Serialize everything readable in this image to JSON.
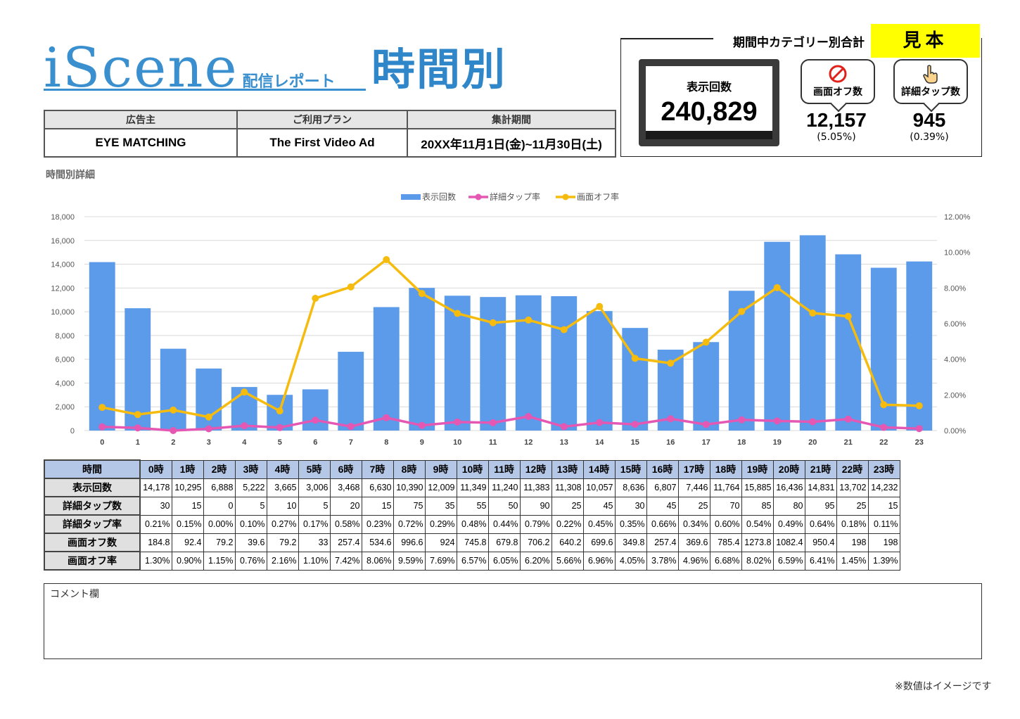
{
  "header": {
    "logo_main": "iScene",
    "logo_sub": "配信レポート",
    "title": "時間別"
  },
  "info": {
    "headers": [
      "広告主",
      "ご利用プラン",
      "集計期間"
    ],
    "values": [
      "EYE MATCHING",
      "The First Video Ad",
      "20XX年11月1日(金)~11月30日(土)"
    ]
  },
  "summary": {
    "title": "期間中カテゴリー別合計",
    "sample_label": "見本",
    "impressions_label": "表示回数",
    "impressions_value": "240,829",
    "screen_off_label": "画面オフ数",
    "screen_off_value": "12,157",
    "screen_off_pct": "(5.05%)",
    "detail_tap_label": "詳細タップ数",
    "detail_tap_value": "945",
    "detail_tap_pct": "(0.39%)",
    "icons": [
      "no-entry-icon",
      "hand-pointer-icon"
    ]
  },
  "section_title": "時間別詳細",
  "chart_data": {
    "type": "bar",
    "categories": [
      "0",
      "1",
      "2",
      "3",
      "4",
      "5",
      "6",
      "7",
      "8",
      "9",
      "10",
      "11",
      "12",
      "13",
      "14",
      "15",
      "16",
      "17",
      "18",
      "19",
      "20",
      "21",
      "22",
      "23"
    ],
    "series": [
      {
        "name": "表示回数",
        "type": "bar",
        "axis": "left",
        "color": "#5b9bea",
        "values": [
          14178,
          10295,
          6888,
          5222,
          3665,
          3006,
          3468,
          6630,
          10390,
          12009,
          11349,
          11240,
          11383,
          11308,
          10057,
          8636,
          6807,
          7446,
          11764,
          15885,
          16436,
          14831,
          13702,
          14232
        ]
      },
      {
        "name": "詳細タップ率",
        "type": "line",
        "axis": "right",
        "color": "#e458b4",
        "values": [
          0.21,
          0.15,
          0.0,
          0.1,
          0.27,
          0.17,
          0.58,
          0.23,
          0.72,
          0.29,
          0.48,
          0.44,
          0.79,
          0.22,
          0.45,
          0.35,
          0.66,
          0.34,
          0.6,
          0.54,
          0.49,
          0.64,
          0.18,
          0.11
        ]
      },
      {
        "name": "画面オフ率",
        "type": "line",
        "axis": "right",
        "color": "#f5bc0f",
        "values": [
          1.3,
          0.9,
          1.15,
          0.76,
          2.16,
          1.1,
          7.42,
          8.06,
          9.59,
          7.69,
          6.57,
          6.05,
          6.2,
          5.66,
          6.96,
          4.05,
          3.78,
          4.96,
          6.68,
          8.02,
          6.59,
          6.41,
          1.45,
          1.39
        ]
      }
    ],
    "ylim": [
      0,
      18000
    ],
    "y_ticks": [
      "0",
      "2,000",
      "4,000",
      "6,000",
      "8,000",
      "10,000",
      "12,000",
      "14,000",
      "16,000",
      "18,000"
    ],
    "y2lim": [
      0,
      12
    ],
    "y2_ticks": [
      "0.00%",
      "2.00%",
      "4.00%",
      "6.00%",
      "8.00%",
      "10.00%",
      "12.00%"
    ],
    "legend_position": "top",
    "grid": true
  },
  "table": {
    "header_label": "時間",
    "hours": [
      "0時",
      "1時",
      "2時",
      "3時",
      "4時",
      "5時",
      "6時",
      "7時",
      "8時",
      "9時",
      "10時",
      "11時",
      "12時",
      "13時",
      "14時",
      "15時",
      "16時",
      "17時",
      "18時",
      "19時",
      "20時",
      "21時",
      "22時",
      "23時"
    ],
    "rows": [
      {
        "label": "表示回数",
        "cells": [
          "14,178",
          "10,295",
          "6,888",
          "5,222",
          "3,665",
          "3,006",
          "3,468",
          "6,630",
          "10,390",
          "12,009",
          "11,349",
          "11,240",
          "11,383",
          "11,308",
          "10,057",
          "8,636",
          "6,807",
          "7,446",
          "11,764",
          "15,885",
          "16,436",
          "14,831",
          "13,702",
          "14,232"
        ]
      },
      {
        "label": "詳細タップ数",
        "cells": [
          "30",
          "15",
          "0",
          "5",
          "10",
          "5",
          "20",
          "15",
          "75",
          "35",
          "55",
          "50",
          "90",
          "25",
          "45",
          "30",
          "45",
          "25",
          "70",
          "85",
          "80",
          "95",
          "25",
          "15"
        ]
      },
      {
        "label": "詳細タップ率",
        "cells": [
          "0.21%",
          "0.15%",
          "0.00%",
          "0.10%",
          "0.27%",
          "0.17%",
          "0.58%",
          "0.23%",
          "0.72%",
          "0.29%",
          "0.48%",
          "0.44%",
          "0.79%",
          "0.22%",
          "0.45%",
          "0.35%",
          "0.66%",
          "0.34%",
          "0.60%",
          "0.54%",
          "0.49%",
          "0.64%",
          "0.18%",
          "0.11%"
        ]
      },
      {
        "label": "画面オフ数",
        "cells": [
          "184.8",
          "92.4",
          "79.2",
          "39.6",
          "79.2",
          "33",
          "257.4",
          "534.6",
          "996.6",
          "924",
          "745.8",
          "679.8",
          "706.2",
          "640.2",
          "699.6",
          "349.8",
          "257.4",
          "369.6",
          "785.4",
          "1273.8",
          "1082.4",
          "950.4",
          "198",
          "198"
        ]
      },
      {
        "label": "画面オフ率",
        "cells": [
          "1.30%",
          "0.90%",
          "1.15%",
          "0.76%",
          "2.16%",
          "1.10%",
          "7.42%",
          "8.06%",
          "9.59%",
          "7.69%",
          "6.57%",
          "6.05%",
          "6.20%",
          "5.66%",
          "6.96%",
          "4.05%",
          "3.78%",
          "4.96%",
          "6.68%",
          "8.02%",
          "6.59%",
          "6.41%",
          "1.45%",
          "1.39%"
        ]
      }
    ]
  },
  "comment_label": "コメント欄",
  "footnote": "※数値はイメージです"
}
